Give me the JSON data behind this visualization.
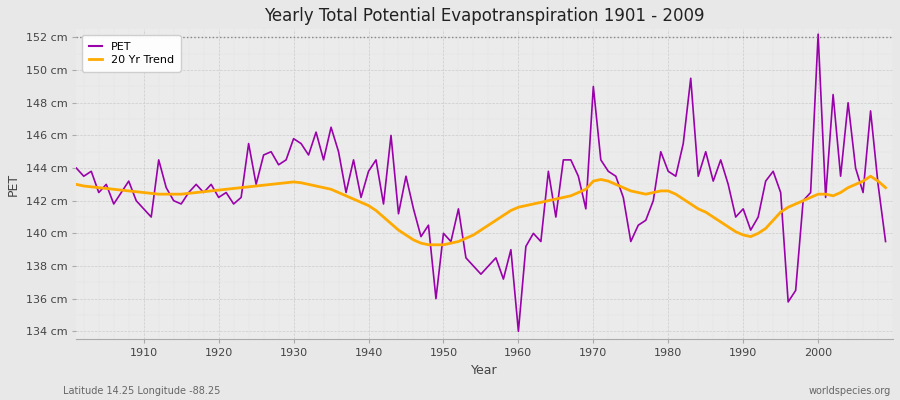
{
  "title": "Yearly Total Potential Evapotranspiration 1901 - 2009",
  "xlabel": "Year",
  "ylabel": "PET",
  "footnote_left": "Latitude 14.25 Longitude -88.25",
  "footnote_right": "worldspecies.org",
  "pet_color": "#9900aa",
  "trend_color": "#ffaa00",
  "fig_bg_color": "#e8e8e8",
  "plot_bg_color": "#ebebeb",
  "ylim": [
    133.5,
    152.5
  ],
  "yticks": [
    134,
    136,
    138,
    140,
    142,
    144,
    146,
    148,
    150,
    152
  ],
  "ytick_labels": [
    "134 cm",
    "136 cm",
    "138 cm",
    "140 cm",
    "142 cm",
    "144 cm",
    "146 cm",
    "148 cm",
    "150 cm",
    "152 cm"
  ],
  "xticks": [
    1910,
    1920,
    1930,
    1940,
    1950,
    1960,
    1970,
    1980,
    1990,
    2000
  ],
  "xlim": [
    1901,
    2010
  ],
  "years": [
    1901,
    1902,
    1903,
    1904,
    1905,
    1906,
    1907,
    1908,
    1909,
    1910,
    1911,
    1912,
    1913,
    1914,
    1915,
    1916,
    1917,
    1918,
    1919,
    1920,
    1921,
    1922,
    1923,
    1924,
    1925,
    1926,
    1927,
    1928,
    1929,
    1930,
    1931,
    1932,
    1933,
    1934,
    1935,
    1936,
    1937,
    1938,
    1939,
    1940,
    1941,
    1942,
    1943,
    1944,
    1945,
    1946,
    1947,
    1948,
    1949,
    1950,
    1951,
    1952,
    1953,
    1954,
    1955,
    1956,
    1957,
    1958,
    1959,
    1960,
    1961,
    1962,
    1963,
    1964,
    1965,
    1966,
    1967,
    1968,
    1969,
    1970,
    1971,
    1972,
    1973,
    1974,
    1975,
    1976,
    1977,
    1978,
    1979,
    1980,
    1981,
    1982,
    1983,
    1984,
    1985,
    1986,
    1987,
    1988,
    1989,
    1990,
    1991,
    1992,
    1993,
    1994,
    1995,
    1996,
    1997,
    1998,
    1999,
    2000,
    2001,
    2002,
    2003,
    2004,
    2005,
    2006,
    2007,
    2008,
    2009
  ],
  "pet_values": [
    144.0,
    143.5,
    143.8,
    142.5,
    143.0,
    141.8,
    142.5,
    143.2,
    142.0,
    141.5,
    141.0,
    144.5,
    142.8,
    142.0,
    141.8,
    142.5,
    143.0,
    142.5,
    143.0,
    142.2,
    142.5,
    141.8,
    142.2,
    145.5,
    143.0,
    144.8,
    145.0,
    144.2,
    144.5,
    145.8,
    145.5,
    144.8,
    146.2,
    144.5,
    146.5,
    145.0,
    142.5,
    144.5,
    142.2,
    143.8,
    144.5,
    141.8,
    146.0,
    141.2,
    143.5,
    141.5,
    139.8,
    140.5,
    136.0,
    140.0,
    139.5,
    141.5,
    138.5,
    138.0,
    137.5,
    138.0,
    138.5,
    137.2,
    139.0,
    134.0,
    139.2,
    140.0,
    139.5,
    143.8,
    141.0,
    144.5,
    144.5,
    143.5,
    141.5,
    149.0,
    144.5,
    143.8,
    143.5,
    142.2,
    139.5,
    140.5,
    140.8,
    142.0,
    145.0,
    143.8,
    143.5,
    145.5,
    149.5,
    143.5,
    145.0,
    143.2,
    144.5,
    143.0,
    141.0,
    141.5,
    140.2,
    141.0,
    143.2,
    143.8,
    142.5,
    135.8,
    136.5,
    142.0,
    142.5,
    152.2,
    142.2,
    148.5,
    143.5,
    148.0,
    144.0,
    142.5,
    147.5,
    143.0,
    139.5
  ],
  "trend_values": [
    143.0,
    142.9,
    142.85,
    142.8,
    142.75,
    142.7,
    142.65,
    142.6,
    142.55,
    142.5,
    142.45,
    142.4,
    142.4,
    142.4,
    142.4,
    142.45,
    142.5,
    142.55,
    142.6,
    142.65,
    142.7,
    142.75,
    142.8,
    142.85,
    142.9,
    142.95,
    143.0,
    143.05,
    143.1,
    143.15,
    143.1,
    143.0,
    142.9,
    142.8,
    142.7,
    142.5,
    142.3,
    142.1,
    141.9,
    141.7,
    141.4,
    141.0,
    140.6,
    140.2,
    139.9,
    139.6,
    139.4,
    139.3,
    139.3,
    139.3,
    139.4,
    139.5,
    139.7,
    139.9,
    140.2,
    140.5,
    140.8,
    141.1,
    141.4,
    141.6,
    141.7,
    141.8,
    141.9,
    142.0,
    142.1,
    142.2,
    142.3,
    142.5,
    142.7,
    143.2,
    143.3,
    143.2,
    143.0,
    142.8,
    142.6,
    142.5,
    142.4,
    142.5,
    142.6,
    142.6,
    142.4,
    142.1,
    141.8,
    141.5,
    141.3,
    141.0,
    140.7,
    140.4,
    140.1,
    139.9,
    139.8,
    140.0,
    140.3,
    140.8,
    141.3,
    141.6,
    141.8,
    142.0,
    142.2,
    142.4,
    142.4,
    142.3,
    142.5,
    142.8,
    143.0,
    143.2,
    143.5,
    143.2,
    142.8
  ],
  "legend_pet_label": "PET",
  "legend_trend_label": "20 Yr Trend",
  "hline_y": 152,
  "grid_color": "#cccccc",
  "grid_minor_color": "#dddddd"
}
